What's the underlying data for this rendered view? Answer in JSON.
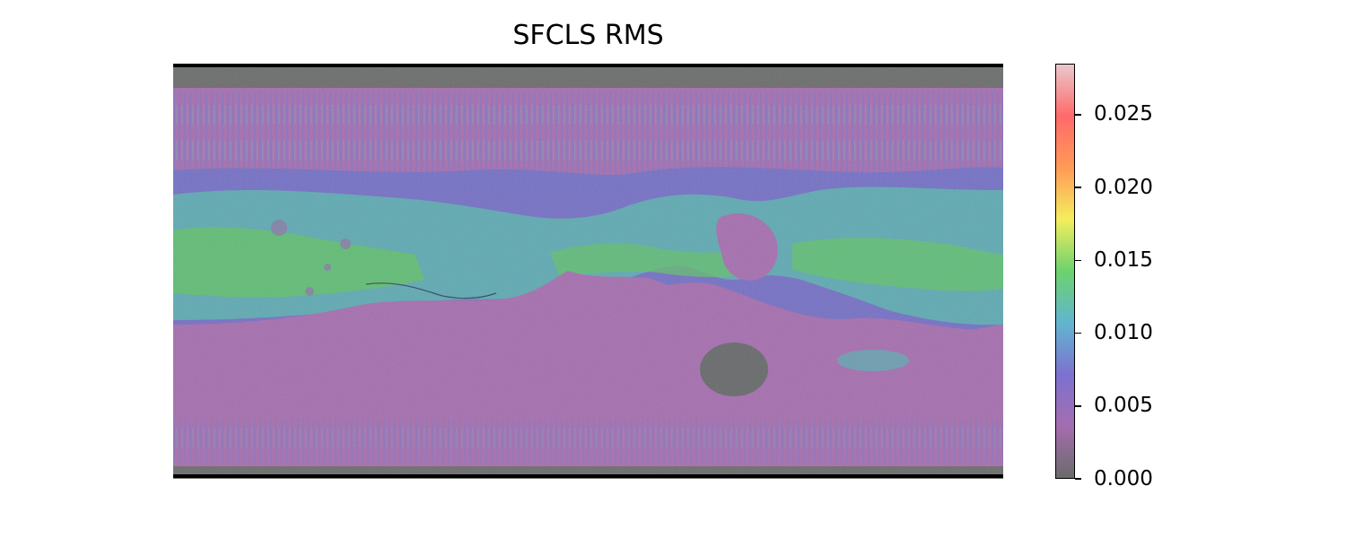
{
  "title": "SFCLS RMS",
  "colorbar": {
    "min": 0.0,
    "max": 0.0285,
    "ticks": [
      {
        "value": 0.0,
        "label": "0.000"
      },
      {
        "value": 0.005,
        "label": "0.005"
      },
      {
        "value": 0.01,
        "label": "0.010"
      },
      {
        "value": 0.015,
        "label": "0.015"
      },
      {
        "value": 0.02,
        "label": "0.020"
      },
      {
        "value": 0.025,
        "label": "0.025"
      }
    ],
    "colors": [
      "#6b6b6b",
      "#a56db0",
      "#7c72cf",
      "#62b5cf",
      "#6cd26e",
      "#f4ee5e",
      "#ff9a57",
      "#ff6a6a",
      "#e9c8cc"
    ]
  },
  "map": {
    "background_color": "#6a6a6a",
    "regions": {
      "polar_gray": "#6b6c6c",
      "low_purple": "#a56eae",
      "blue_band": "#7070c6",
      "teal_band": "#5fa9b2",
      "green_band": "#62c06a",
      "dark_basin": "#67696b"
    }
  }
}
